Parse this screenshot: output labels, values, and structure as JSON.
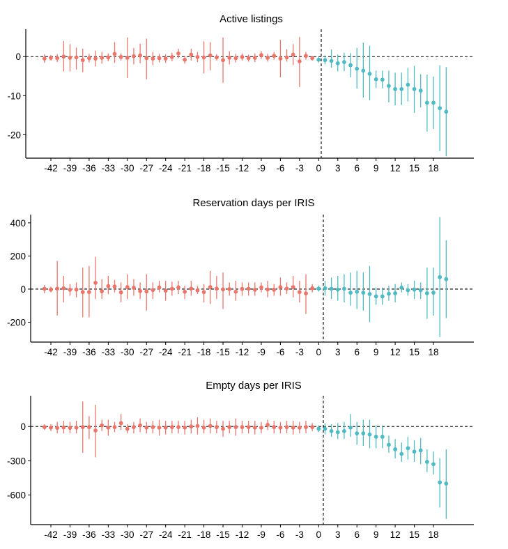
{
  "chart_data": [
    {
      "type": "scatter",
      "title": "Active listings",
      "xlabel": "",
      "ylabel": "",
      "ylim": [
        -26,
        7
      ],
      "x_tick_labels": [
        "-42",
        "-39",
        "-36",
        "-33",
        "-30",
        "-27",
        "-24",
        "-21",
        "-18",
        "-15",
        "-12",
        "-9",
        "-6",
        "-3",
        "0",
        "3",
        "6",
        "9",
        "12",
        "15",
        "18"
      ],
      "y_tick_labels": [
        "0",
        "-10",
        "-20"
      ],
      "y_ticks": [
        0,
        -10,
        -20
      ],
      "series": [
        {
          "name": "pre",
          "color": "#E8766C",
          "x": [
            -43,
            -42,
            -41,
            -40,
            -39,
            -38,
            -37,
            -36,
            -35,
            -34,
            -33,
            -32,
            -31,
            -30,
            -29,
            -28,
            -27,
            -26,
            -25,
            -24,
            -23,
            -22,
            -21,
            -20,
            -19,
            -18,
            -17,
            -16,
            -15,
            -14,
            -13,
            -12,
            -11,
            -10,
            -9,
            -8,
            -7,
            -6,
            -5,
            -4,
            -3,
            -2,
            -1
          ],
          "y": [
            -0.5,
            -0.3,
            -0.4,
            0,
            -0.3,
            -0.2,
            -0.9,
            -0.4,
            -0.5,
            -0.3,
            -0.2,
            0.7,
            -0.1,
            -0.3,
            0.1,
            0.3,
            -0.4,
            -0.5,
            -0.4,
            -0.5,
            -0.1,
            0.8,
            -0.8,
            0.5,
            -0.1,
            -0.2,
            0.3,
            -0.2,
            -0.9,
            -0.3,
            -0.4,
            -0.1,
            -0.4,
            -0.3,
            0.4,
            -0.3,
            0.2,
            -0.5,
            -0.2,
            0.5,
            -1.2,
            0.2,
            -0.4
          ],
          "lo": [
            -1.6,
            -1.0,
            -1.4,
            -3.8,
            -3.8,
            -3.3,
            -4.0,
            -1.5,
            -2.5,
            -1.8,
            -1.2,
            -1.6,
            -1.0,
            -5.5,
            -2.0,
            -1.7,
            -5.8,
            -2.2,
            -1.5,
            -1.6,
            -1.2,
            -0.4,
            -1.8,
            -1.0,
            -1.4,
            -4.3,
            -3.5,
            -1.0,
            -6.7,
            -2.0,
            -1.5,
            -1.0,
            -1.3,
            -1.4,
            -0.6,
            -1.3,
            -0.8,
            -5.3,
            -1.3,
            -2.2,
            -7.8,
            -0.8,
            -1.0
          ],
          "hi": [
            0.6,
            0.4,
            0.6,
            4.0,
            3.2,
            2.3,
            2.0,
            0.7,
            1.5,
            1.2,
            0.8,
            3.7,
            0.8,
            4.9,
            2.2,
            3.3,
            4.6,
            1.2,
            0.7,
            0.6,
            1.0,
            2.0,
            0.2,
            2.0,
            1.2,
            3.9,
            3.7,
            0.6,
            4.9,
            1.4,
            0.7,
            0.8,
            0.5,
            0.8,
            1.4,
            0.7,
            1.2,
            4.3,
            1.9,
            3.2,
            5.0,
            1.2,
            0.2
          ]
        },
        {
          "name": "post",
          "color": "#4FBAC2",
          "x": [
            0,
            1,
            2,
            3,
            4,
            5,
            6,
            7,
            8,
            9,
            10,
            11,
            12,
            13,
            14,
            15,
            16,
            17,
            18,
            19,
            20
          ],
          "y": [
            -0.8,
            -0.9,
            -1.1,
            -1.7,
            -1.4,
            -2.2,
            -3.1,
            -3.6,
            -4.4,
            -5.8,
            -5.9,
            -7.5,
            -8.3,
            -8.3,
            -7.2,
            -8.3,
            -8.7,
            -11.8,
            -11.8,
            -13.2,
            -14.1
          ],
          "lo": [
            -1.5,
            -2.0,
            -2.8,
            -3.8,
            -3.7,
            -5.3,
            -8.2,
            -10.5,
            -11.2,
            -8.0,
            -8.1,
            -11.7,
            -12.5,
            -12.4,
            -11.5,
            -14.4,
            -13.0,
            -19.2,
            -18.5,
            -24.2,
            -25.5
          ],
          "hi": [
            0.0,
            0.3,
            1.8,
            0.5,
            1.0,
            0.9,
            2.2,
            3.6,
            2.8,
            -3.6,
            -3.6,
            -3.6,
            -4.1,
            -4.1,
            -2.9,
            -2.4,
            -4.5,
            -4.6,
            -5.1,
            -2.2,
            -2.7
          ]
        }
      ]
    },
    {
      "type": "scatter",
      "title": "Reservation days per IRIS",
      "xlabel": "",
      "ylabel": "",
      "ylim": [
        -320,
        450
      ],
      "x_tick_labels": [
        "-42",
        "-39",
        "-36",
        "-33",
        "-30",
        "-27",
        "-24",
        "-21",
        "-18",
        "-15",
        "-12",
        "-9",
        "-6",
        "-3",
        "0",
        "3",
        "6",
        "9",
        "12",
        "15",
        "18"
      ],
      "y_tick_labels": [
        "400",
        "200",
        "0",
        "-200"
      ],
      "y_ticks": [
        400,
        200,
        0,
        -200
      ],
      "series": [
        {
          "name": "pre",
          "color": "#E8766C",
          "x": [
            -43,
            -42,
            -41,
            -40,
            -39,
            -38,
            -37,
            -36,
            -35,
            -34,
            -33,
            -32,
            -31,
            -30,
            -29,
            -28,
            -27,
            -26,
            -25,
            -24,
            -23,
            -22,
            -21,
            -20,
            -19,
            -18,
            -17,
            -16,
            -15,
            -14,
            -13,
            -12,
            -11,
            -10,
            -9,
            -8,
            -7,
            -6,
            -5,
            -4,
            -3,
            -2,
            -1
          ],
          "y": [
            2,
            -3,
            3,
            5,
            -4,
            -3,
            -18,
            -18,
            38,
            -13,
            18,
            16,
            -20,
            12,
            8,
            -12,
            -14,
            -6,
            10,
            -10,
            2,
            10,
            -16,
            3,
            -8,
            -18,
            12,
            3,
            -2,
            0,
            -16,
            1,
            2,
            -4,
            10,
            -2,
            -4,
            12,
            3,
            12,
            -18,
            -26,
            5
          ],
          "lo": [
            -25,
            -20,
            -160,
            -80,
            -40,
            -50,
            -170,
            -170,
            -60,
            -60,
            -30,
            -20,
            -80,
            -60,
            -40,
            -60,
            -130,
            -60,
            -20,
            -70,
            -40,
            -30,
            -60,
            -40,
            -30,
            -80,
            -90,
            -60,
            -120,
            -40,
            -70,
            -40,
            -40,
            -40,
            -20,
            -50,
            -40,
            -40,
            -30,
            -50,
            -80,
            -150,
            -20
          ],
          "hi": [
            25,
            15,
            170,
            80,
            30,
            40,
            130,
            140,
            195,
            60,
            80,
            55,
            40,
            90,
            60,
            40,
            90,
            40,
            50,
            50,
            45,
            50,
            20,
            50,
            20,
            30,
            110,
            80,
            100,
            40,
            50,
            40,
            40,
            40,
            40,
            50,
            30,
            70,
            40,
            80,
            50,
            90,
            30
          ]
        },
        {
          "name": "post",
          "color": "#4FBAC2",
          "x": [
            0,
            1,
            2,
            3,
            4,
            5,
            6,
            7,
            8,
            9,
            10,
            11,
            12,
            13,
            14,
            15,
            16,
            17,
            18,
            19,
            20
          ],
          "y": [
            3,
            5,
            2,
            -3,
            2,
            -22,
            -16,
            -22,
            -30,
            -44,
            -44,
            -28,
            -25,
            9,
            -7,
            -3,
            -7,
            -25,
            -22,
            72,
            60
          ],
          "lo": [
            -15,
            -40,
            -60,
            -70,
            -80,
            -100,
            -120,
            -130,
            -200,
            -95,
            -95,
            -70,
            -80,
            -20,
            -40,
            -60,
            -60,
            -180,
            -160,
            -290,
            -175
          ],
          "hi": [
            20,
            50,
            70,
            80,
            90,
            100,
            110,
            100,
            140,
            10,
            10,
            20,
            30,
            40,
            30,
            50,
            40,
            130,
            130,
            435,
            295
          ]
        }
      ]
    },
    {
      "type": "scatter",
      "title": "Empty days per IRIS",
      "xlabel": "",
      "ylabel": "",
      "ylim": [
        -860,
        270
      ],
      "x_tick_labels": [
        "-42",
        "-39",
        "-36",
        "-33",
        "-30",
        "-27",
        "-24",
        "-21",
        "-18",
        "-15",
        "-12",
        "-9",
        "-6",
        "-3",
        "0",
        "3",
        "6",
        "9",
        "12",
        "15",
        "18"
      ],
      "y_tick_labels": [
        "0",
        "-300",
        "-600"
      ],
      "y_ticks": [
        0,
        -300,
        -600
      ],
      "series": [
        {
          "name": "pre",
          "color": "#E8766C",
          "x": [
            -43,
            -42,
            -41,
            -40,
            -39,
            -38,
            -37,
            -36,
            -35,
            -34,
            -33,
            -32,
            -31,
            -30,
            -29,
            -28,
            -27,
            -26,
            -25,
            -24,
            -23,
            -22,
            -21,
            -20,
            -19,
            -18,
            -17,
            -16,
            -15,
            -14,
            -13,
            -12,
            -11,
            -10,
            -9,
            -8,
            -7,
            -6,
            -5,
            -4,
            -3,
            -2,
            -1
          ],
          "y": [
            -5,
            -10,
            -12,
            -8,
            -12,
            -10,
            -5,
            -5,
            -35,
            10,
            -10,
            -5,
            30,
            -20,
            -5,
            10,
            -10,
            -5,
            -10,
            -10,
            -5,
            -5,
            -10,
            0,
            5,
            -10,
            5,
            -5,
            -20,
            -5,
            -5,
            -5,
            -5,
            -10,
            -10,
            15,
            -5,
            -10,
            -5,
            -10,
            -10,
            -5,
            -5
          ],
          "lo": [
            -30,
            -40,
            -60,
            -60,
            -60,
            -60,
            -230,
            -110,
            -270,
            -40,
            -80,
            -50,
            -30,
            -60,
            -60,
            -50,
            -60,
            -60,
            -80,
            -70,
            -60,
            -60,
            -70,
            -60,
            -70,
            -60,
            -60,
            -60,
            -90,
            -60,
            -80,
            -60,
            -60,
            -70,
            -60,
            -30,
            -60,
            -60,
            -60,
            -70,
            -60,
            -60,
            -40
          ],
          "hi": [
            20,
            20,
            40,
            50,
            40,
            50,
            220,
            90,
            190,
            60,
            60,
            40,
            110,
            20,
            40,
            70,
            40,
            50,
            60,
            50,
            50,
            50,
            50,
            60,
            80,
            60,
            70,
            50,
            50,
            50,
            70,
            50,
            50,
            50,
            40,
            60,
            50,
            40,
            50,
            50,
            40,
            50,
            30
          ]
        },
        {
          "name": "post",
          "color": "#4FBAC2",
          "x": [
            0,
            1,
            2,
            3,
            4,
            5,
            6,
            7,
            8,
            9,
            10,
            11,
            12,
            13,
            14,
            15,
            16,
            17,
            18,
            19,
            20
          ],
          "y": [
            -20,
            -20,
            -40,
            -50,
            -40,
            -10,
            -60,
            -60,
            -70,
            -90,
            -90,
            -160,
            -200,
            -240,
            -190,
            -220,
            -210,
            -310,
            -330,
            -490,
            -500
          ],
          "lo": [
            -50,
            -70,
            -90,
            -110,
            -110,
            -90,
            -160,
            -170,
            -190,
            -190,
            -190,
            -230,
            -280,
            -310,
            -290,
            -310,
            -330,
            -400,
            -420,
            -710,
            -810
          ],
          "hi": [
            10,
            30,
            20,
            30,
            40,
            110,
            40,
            60,
            60,
            10,
            10,
            -80,
            -110,
            -140,
            -90,
            -120,
            -100,
            -200,
            -220,
            -280,
            -200
          ]
        }
      ]
    }
  ]
}
